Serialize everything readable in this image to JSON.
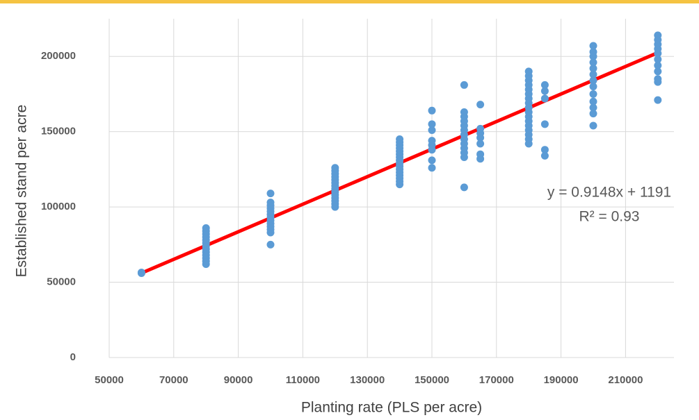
{
  "chart_data": {
    "type": "scatter",
    "xlabel": "Planting rate (PLS per acre)",
    "ylabel": "Established stand per acre",
    "series": [
      {
        "color": "#5b9bd5",
        "x": [
          60000,
          60000,
          80000,
          80000,
          80000,
          80000,
          80000,
          80000,
          80000,
          80000,
          80000,
          80000,
          80000,
          80000,
          80000,
          100000,
          100000,
          100000,
          100000,
          100000,
          100000,
          100000,
          100000,
          100000,
          100000,
          100000,
          100000,
          100000,
          120000,
          120000,
          120000,
          120000,
          120000,
          120000,
          120000,
          120000,
          120000,
          120000,
          120000,
          120000,
          120000,
          120000,
          140000,
          140000,
          140000,
          140000,
          140000,
          140000,
          140000,
          140000,
          140000,
          140000,
          140000,
          140000,
          140000,
          140000,
          140000,
          140000,
          150000,
          150000,
          150000,
          150000,
          150000,
          150000,
          150000,
          150000,
          160000,
          160000,
          160000,
          160000,
          160000,
          160000,
          160000,
          160000,
          160000,
          160000,
          160000,
          160000,
          160000,
          165000,
          165000,
          165000,
          165000,
          165000,
          165000,
          165000,
          180000,
          180000,
          180000,
          180000,
          180000,
          180000,
          180000,
          180000,
          180000,
          180000,
          180000,
          180000,
          180000,
          180000,
          180000,
          180000,
          180000,
          185000,
          185000,
          185000,
          185000,
          185000,
          185000,
          200000,
          200000,
          200000,
          200000,
          200000,
          200000,
          200000,
          200000,
          200000,
          200000,
          200000,
          200000,
          200000,
          220000,
          220000,
          220000,
          220000,
          220000,
          220000,
          220000,
          220000,
          220000,
          220000,
          220000
        ],
        "values": [
          56000,
          56500,
          62000,
          64000,
          66000,
          68000,
          70000,
          72000,
          74000,
          76000,
          78000,
          80000,
          82000,
          84000,
          86000,
          75000,
          83000,
          85000,
          87000,
          89000,
          91000,
          93000,
          95000,
          97000,
          99000,
          101000,
          103000,
          109000,
          100000,
          102000,
          104000,
          106000,
          108000,
          110000,
          112000,
          114000,
          116000,
          118000,
          120000,
          122000,
          124000,
          126000,
          115000,
          117000,
          119000,
          121000,
          123000,
          125000,
          127000,
          129000,
          131000,
          133000,
          135000,
          137000,
          139000,
          141000,
          143000,
          145000,
          126000,
          131000,
          138000,
          141000,
          144000,
          151000,
          155000,
          164000,
          113000,
          133000,
          136000,
          139000,
          142000,
          145000,
          148000,
          151000,
          154000,
          157000,
          160000,
          163000,
          181000,
          132000,
          135000,
          142000,
          146000,
          149000,
          152000,
          168000,
          142000,
          145000,
          148000,
          151000,
          154000,
          157000,
          160000,
          163000,
          166000,
          169000,
          172000,
          175000,
          178000,
          181000,
          184000,
          187000,
          190000,
          134000,
          138000,
          155000,
          172000,
          177000,
          181000,
          154000,
          162000,
          166000,
          170000,
          175000,
          180000,
          184000,
          188000,
          192000,
          196000,
          200000,
          203000,
          207000,
          171000,
          183000,
          185000,
          190000,
          194000,
          198000,
          202000,
          205000,
          208000,
          211000,
          214000
        ]
      }
    ],
    "trendline": {
      "slope": 0.9148,
      "intercept": 1191,
      "x": [
        60000,
        220000
      ],
      "color": "#ff0000",
      "equation": "y = 0.9148x + 1191",
      "r2": "R² = 0.93"
    },
    "xlim": [
      50000,
      225000
    ],
    "xticks": [
      50000,
      70000,
      90000,
      110000,
      130000,
      150000,
      170000,
      190000,
      210000
    ],
    "ylim": [
      0,
      225000
    ],
    "yticks": [
      0,
      50000,
      100000,
      150000,
      200000
    ],
    "grid": true
  }
}
